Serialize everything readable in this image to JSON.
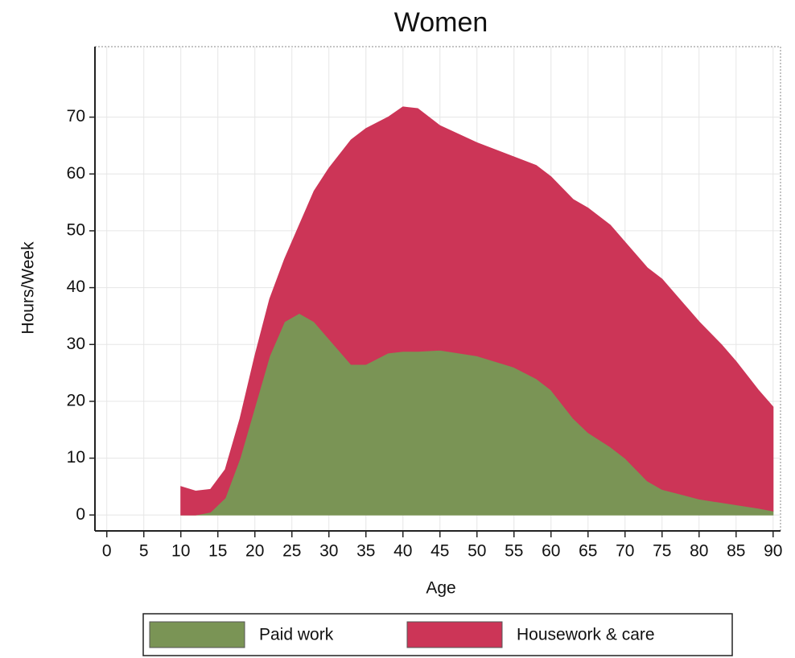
{
  "chart_data": {
    "type": "stacked_area",
    "title": "Women",
    "xlabel": "Age",
    "ylabel": "Hours/Week",
    "x": [
      10,
      12,
      14,
      16,
      18,
      20,
      22,
      24,
      26,
      28,
      30,
      33,
      35,
      38,
      40,
      42,
      45,
      50,
      55,
      58,
      60,
      63,
      65,
      68,
      70,
      73,
      75,
      78,
      80,
      83,
      85,
      88,
      90
    ],
    "series": [
      {
        "name": "Paid work",
        "color": "#7a9455",
        "values": [
          0,
          0,
          0.5,
          3,
          10,
          19,
          28,
          34,
          35.5,
          34,
          31,
          26.5,
          26.5,
          28.5,
          28.8,
          28.8,
          29,
          28,
          26,
          24,
          22,
          17,
          14.5,
          12,
          10,
          6,
          4.5,
          3.5,
          2.8,
          2.2,
          1.8,
          1.2,
          0.7
        ]
      },
      {
        "name": "Housework & care",
        "color": "#cc3557",
        "values": [
          5,
          4.2,
          4,
          5,
          7,
          9,
          10,
          11,
          15.5,
          23,
          30,
          39.5,
          41.5,
          41.5,
          43,
          42.7,
          39.5,
          37.5,
          37,
          37.5,
          37.5,
          38.5,
          39.5,
          39,
          38,
          37.5,
          37,
          33.5,
          31.2,
          27.8,
          25.2,
          20.8,
          18.3
        ]
      }
    ],
    "xlim": [
      -1.6,
      91
    ],
    "ylim": [
      -2.8,
      82.4
    ],
    "xticks": [
      0,
      5,
      10,
      15,
      20,
      25,
      30,
      35,
      40,
      45,
      50,
      55,
      60,
      65,
      70,
      75,
      80,
      85,
      90
    ],
    "yticks": [
      0,
      10,
      20,
      30,
      40,
      50,
      60,
      70
    ],
    "grid": true,
    "legend": "bottom"
  }
}
